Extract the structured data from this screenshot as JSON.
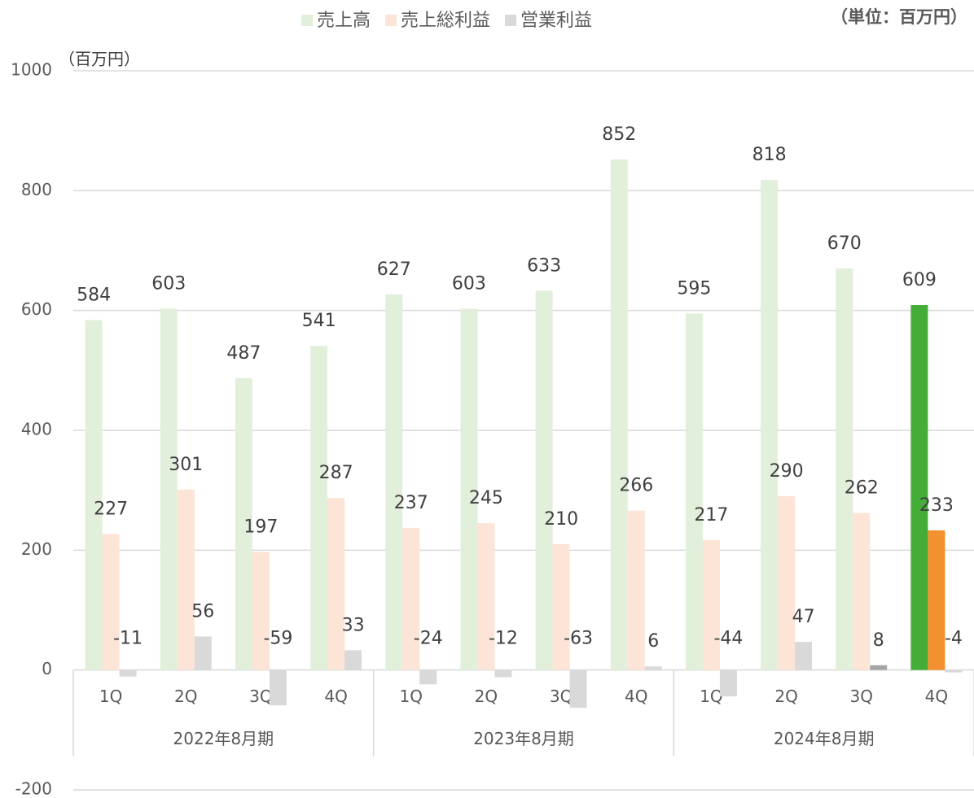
{
  "chart_data": {
    "type": "bar",
    "unit_note": "（単位：百万円）",
    "y_axis_label": "（百万円）",
    "categories": [
      "1Q",
      "2Q",
      "3Q",
      "4Q",
      "1Q",
      "2Q",
      "3Q",
      "4Q",
      "1Q",
      "2Q",
      "3Q",
      "4Q"
    ],
    "groups": [
      "2022年8月期",
      "2023年8月期",
      "2024年8月期"
    ],
    "series": [
      {
        "name": "売上高",
        "color": "#e2efda",
        "values": [
          584,
          603,
          487,
          541,
          627,
          603,
          633,
          852,
          595,
          818,
          670,
          609
        ],
        "point_colors": [
          "#e2efda",
          "#e2efda",
          "#e2efda",
          "#e2efda",
          "#e2efda",
          "#e2efda",
          "#e2efda",
          "#e2efda",
          "#e2efda",
          "#e2efda",
          "#e2efda",
          "#43ad37"
        ]
      },
      {
        "name": "売上総利益",
        "color": "#fce4d6",
        "values": [
          227,
          301,
          197,
          287,
          237,
          245,
          210,
          266,
          217,
          290,
          262,
          233
        ],
        "point_colors": [
          "#fce4d6",
          "#fce4d6",
          "#fce4d6",
          "#fce4d6",
          "#fce4d6",
          "#fce4d6",
          "#fce4d6",
          "#fce4d6",
          "#fce4d6",
          "#fce4d6",
          "#fce4d6",
          "#f39130"
        ]
      },
      {
        "name": "営業利益",
        "color": "#d9d9d9",
        "values": [
          -11,
          56,
          -59,
          33,
          -24,
          -12,
          -63,
          6,
          -44,
          47,
          8,
          -4
        ],
        "point_colors": [
          "#d9d9d9",
          "#d9d9d9",
          "#d9d9d9",
          "#d9d9d9",
          "#d9d9d9",
          "#d9d9d9",
          "#d9d9d9",
          "#d9d9d9",
          "#d9d9d9",
          "#d9d9d9",
          "#a6a6a6",
          "#d9d9d9"
        ]
      }
    ],
    "ylim": [
      -200,
      1000
    ],
    "yticks": [
      -200,
      0,
      200,
      400,
      600,
      800,
      1000
    ],
    "grid": true
  }
}
